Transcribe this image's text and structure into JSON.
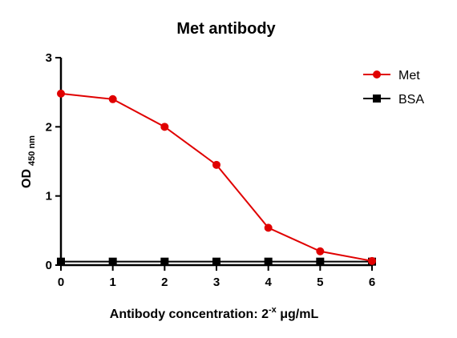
{
  "chart_data": {
    "type": "line",
    "title": "Met antibody",
    "xlabel": {
      "main": "Antibody concentration: 2",
      "sup": "-x",
      "unit": " μg/mL"
    },
    "ylabel": {
      "main": "OD",
      "sub": "450 nm"
    },
    "x": [
      0,
      1,
      2,
      3,
      4,
      5,
      6
    ],
    "xlim": [
      0,
      6
    ],
    "ylim": [
      0,
      3
    ],
    "xticks": [
      "0",
      "1",
      "2",
      "3",
      "4",
      "5",
      "6"
    ],
    "yticks": [
      "0",
      "1",
      "2",
      "3"
    ],
    "grid": false,
    "legend_position": "top-right",
    "series": [
      {
        "name": "Met",
        "color": "#e00000",
        "marker": "circle",
        "values": [
          2.48,
          2.4,
          2.0,
          1.45,
          0.54,
          0.2,
          0.06
        ]
      },
      {
        "name": "BSA",
        "color": "#000000",
        "marker": "square",
        "values": [
          0.05,
          0.05,
          0.05,
          0.05,
          0.05,
          0.05,
          0.05
        ]
      }
    ]
  }
}
